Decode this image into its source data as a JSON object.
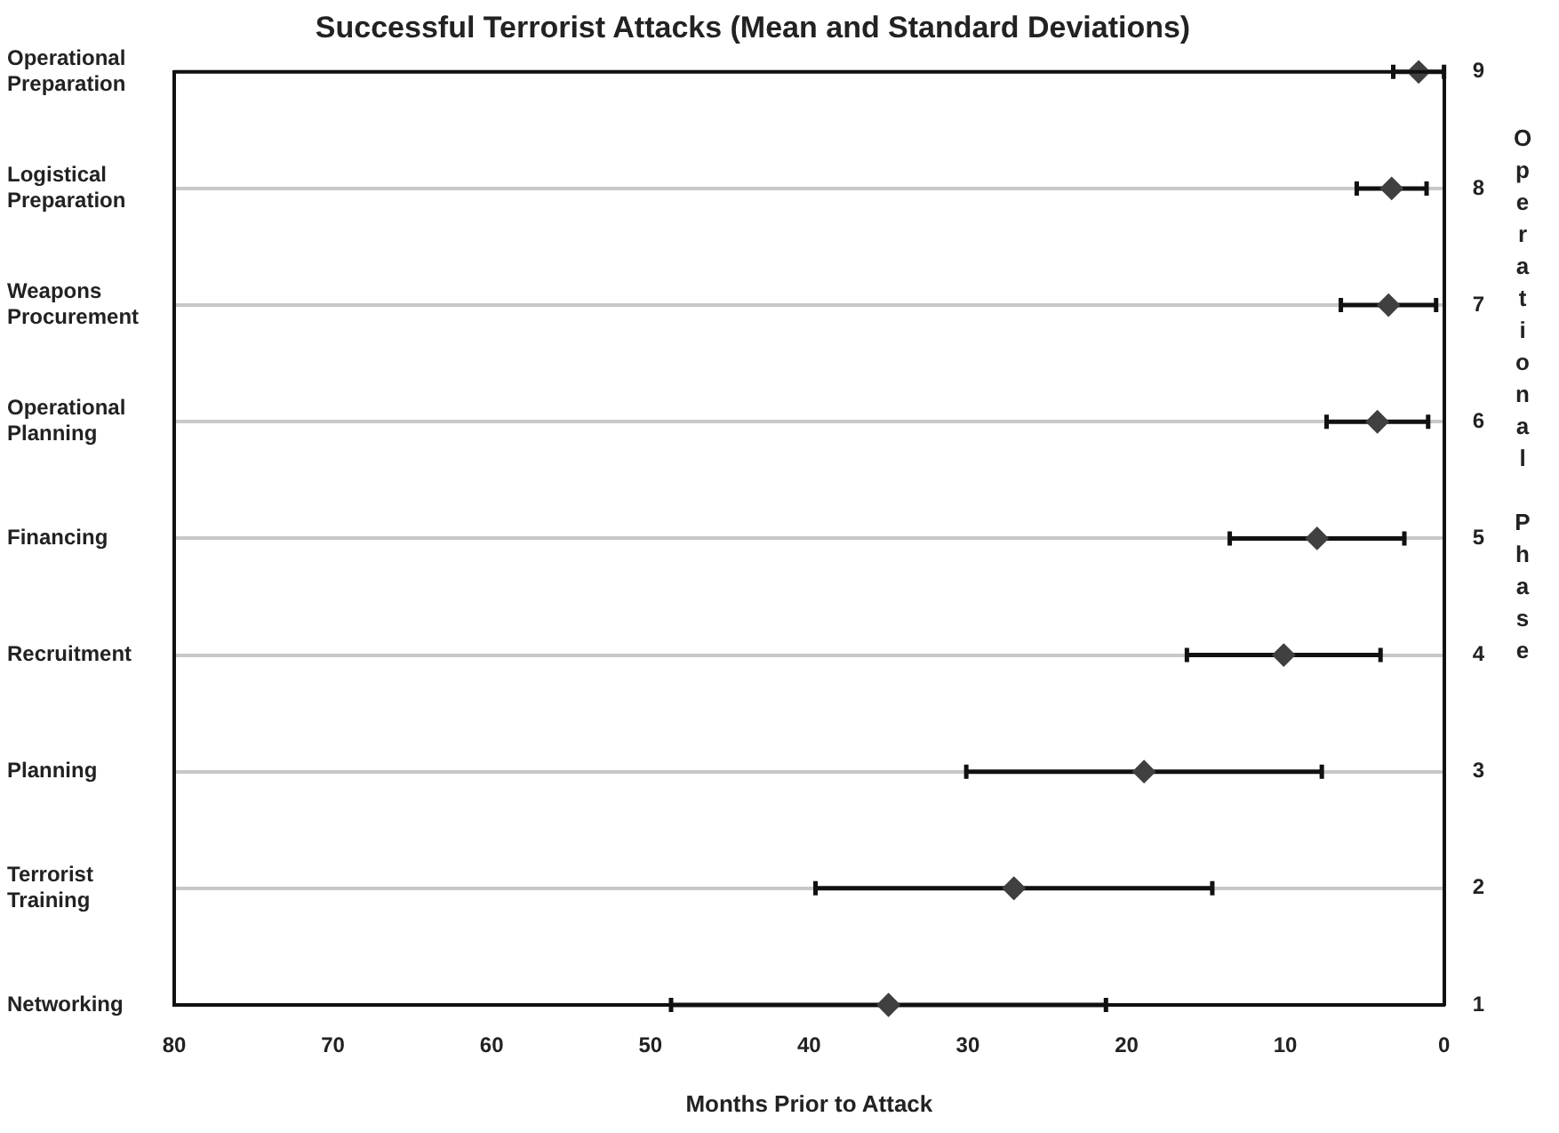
{
  "chart_data": {
    "type": "scatter",
    "orientation": "horizontal",
    "title": "Successful Terrorist Attacks (Mean and Standard Deviations)",
    "xlabel": "Months Prior to Attack",
    "y2label": "Operational Phase",
    "categories": [
      "Operational Preparation",
      "Logistical Preparation",
      "Weapons Procurement",
      "Operational Planning",
      "Financing",
      "Recruitment",
      "Planning",
      "Terrorist Training",
      "Networking"
    ],
    "series": [
      {
        "color": "#404040",
        "values": [
          1.6,
          3.3,
          3.5,
          4.2,
          8,
          10.1,
          18.9,
          27.1,
          35
        ],
        "errors": [
          1.6,
          2.2,
          3,
          3.2,
          5.5,
          6.1,
          11.2,
          12.5,
          13.7
        ]
      }
    ],
    "xlim": [
      80,
      0
    ],
    "xticks": [
      80,
      70,
      60,
      50,
      40,
      30,
      20,
      10,
      0
    ],
    "y2lim": [
      1,
      9
    ],
    "y2ticks": [
      1,
      2,
      3,
      4,
      5,
      6,
      7,
      8,
      9
    ],
    "grid": "y",
    "marker": "diamond",
    "legend": false
  }
}
